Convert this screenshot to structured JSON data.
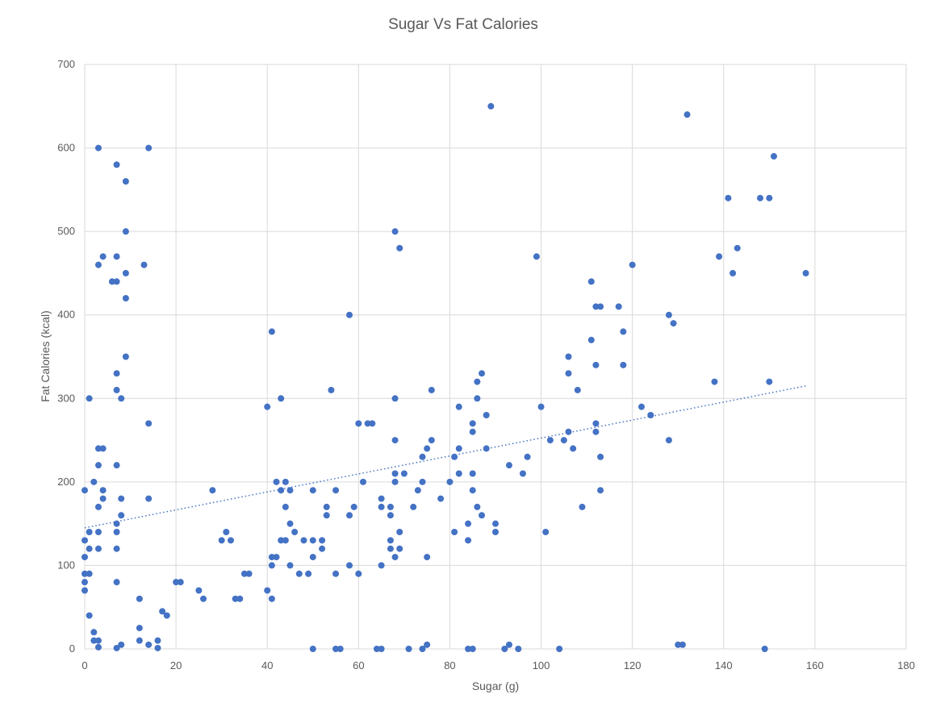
{
  "chart_data": {
    "type": "scatter",
    "title": "Sugar Vs Fat Calories",
    "xlabel": "Sugar (g)",
    "ylabel": "Fat Calories (kcal)",
    "xlim": [
      0,
      180
    ],
    "ylim": [
      0,
      700
    ],
    "xticks": [
      0,
      20,
      40,
      60,
      80,
      100,
      120,
      140,
      160,
      180
    ],
    "yticks": [
      0,
      100,
      200,
      300,
      400,
      500,
      600,
      700
    ],
    "grid": true,
    "legend": "none",
    "marker_color": "#4472c4",
    "trendline": {
      "type": "linear",
      "x": [
        0,
        158
      ],
      "y": [
        145,
        315
      ]
    },
    "points": [
      [
        3,
        600
      ],
      [
        14,
        600
      ],
      [
        7,
        580
      ],
      [
        9,
        560
      ],
      [
        9,
        500
      ],
      [
        4,
        470
      ],
      [
        7,
        470
      ],
      [
        3,
        460
      ],
      [
        13,
        460
      ],
      [
        6,
        440
      ],
      [
        7,
        440
      ],
      [
        9,
        450
      ],
      [
        9,
        420
      ],
      [
        9,
        350
      ],
      [
        7,
        330
      ],
      [
        7,
        310
      ],
      [
        8,
        300
      ],
      [
        1,
        300
      ],
      [
        14,
        270
      ],
      [
        3,
        240
      ],
      [
        4,
        240
      ],
      [
        3,
        220
      ],
      [
        7,
        220
      ],
      [
        2,
        200
      ],
      [
        4,
        190
      ],
      [
        0,
        190
      ],
      [
        4,
        180
      ],
      [
        8,
        180
      ],
      [
        14,
        180
      ],
      [
        3,
        170
      ],
      [
        8,
        160
      ],
      [
        7,
        150
      ],
      [
        1,
        140
      ],
      [
        3,
        140
      ],
      [
        7,
        140
      ],
      [
        0,
        130
      ],
      [
        1,
        120
      ],
      [
        3,
        120
      ],
      [
        7,
        120
      ],
      [
        0,
        110
      ],
      [
        0,
        90
      ],
      [
        1,
        90
      ],
      [
        0,
        80
      ],
      [
        7,
        80
      ],
      [
        0,
        70
      ],
      [
        1,
        40
      ],
      [
        2,
        20
      ],
      [
        2,
        10
      ],
      [
        3,
        10
      ],
      [
        3,
        2
      ],
      [
        7,
        1
      ],
      [
        8,
        5
      ],
      [
        12,
        60
      ],
      [
        12,
        25
      ],
      [
        12,
        10
      ],
      [
        14,
        5
      ],
      [
        16,
        10
      ],
      [
        16,
        1
      ],
      [
        17,
        45
      ],
      [
        18,
        40
      ],
      [
        20,
        80
      ],
      [
        21,
        80
      ],
      [
        25,
        70
      ],
      [
        26,
        60
      ],
      [
        28,
        190
      ],
      [
        30,
        130
      ],
      [
        31,
        140
      ],
      [
        32,
        130
      ],
      [
        33,
        60
      ],
      [
        34,
        60
      ],
      [
        35,
        90
      ],
      [
        36,
        90
      ],
      [
        40,
        290
      ],
      [
        41,
        380
      ],
      [
        43,
        300
      ],
      [
        42,
        200
      ],
      [
        44,
        200
      ],
      [
        43,
        190
      ],
      [
        45,
        190
      ],
      [
        44,
        170
      ],
      [
        45,
        150
      ],
      [
        46,
        140
      ],
      [
        43,
        130
      ],
      [
        44,
        130
      ],
      [
        41,
        110
      ],
      [
        42,
        110
      ],
      [
        41,
        100
      ],
      [
        40,
        70
      ],
      [
        41,
        60
      ],
      [
        45,
        100
      ],
      [
        47,
        90
      ],
      [
        48,
        130
      ],
      [
        49,
        90
      ],
      [
        50,
        190
      ],
      [
        50,
        130
      ],
      [
        50,
        110
      ],
      [
        52,
        130
      ],
      [
        52,
        120
      ],
      [
        53,
        170
      ],
      [
        53,
        160
      ],
      [
        54,
        310
      ],
      [
        55,
        190
      ],
      [
        55,
        90
      ],
      [
        58,
        400
      ],
      [
        58,
        160
      ],
      [
        58,
        100
      ],
      [
        59,
        170
      ],
      [
        60,
        270
      ],
      [
        60,
        90
      ],
      [
        61,
        200
      ],
      [
        62,
        270
      ],
      [
        63,
        270
      ],
      [
        65,
        180
      ],
      [
        65,
        170
      ],
      [
        65,
        100
      ],
      [
        67,
        170
      ],
      [
        67,
        160
      ],
      [
        67,
        130
      ],
      [
        67,
        120
      ],
      [
        68,
        500
      ],
      [
        68,
        300
      ],
      [
        68,
        250
      ],
      [
        68,
        210
      ],
      [
        68,
        200
      ],
      [
        68,
        110
      ],
      [
        69,
        480
      ],
      [
        69,
        140
      ],
      [
        69,
        120
      ],
      [
        70,
        210
      ],
      [
        72,
        170
      ],
      [
        73,
        190
      ],
      [
        74,
        230
      ],
      [
        74,
        200
      ],
      [
        75,
        240
      ],
      [
        75,
        110
      ],
      [
        76,
        310
      ],
      [
        76,
        250
      ],
      [
        78,
        180
      ],
      [
        80,
        200
      ],
      [
        81,
        230
      ],
      [
        81,
        140
      ],
      [
        82,
        290
      ],
      [
        82,
        240
      ],
      [
        82,
        210
      ],
      [
        84,
        150
      ],
      [
        84,
        130
      ],
      [
        85,
        270
      ],
      [
        85,
        260
      ],
      [
        85,
        210
      ],
      [
        85,
        190
      ],
      [
        86,
        320
      ],
      [
        86,
        300
      ],
      [
        86,
        170
      ],
      [
        87,
        330
      ],
      [
        87,
        160
      ],
      [
        88,
        280
      ],
      [
        88,
        240
      ],
      [
        89,
        650
      ],
      [
        90,
        150
      ],
      [
        90,
        140
      ],
      [
        93,
        220
      ],
      [
        96,
        210
      ],
      [
        97,
        230
      ],
      [
        99,
        470
      ],
      [
        100,
        290
      ],
      [
        101,
        140
      ],
      [
        102,
        250
      ],
      [
        105,
        250
      ],
      [
        106,
        350
      ],
      [
        106,
        330
      ],
      [
        106,
        260
      ],
      [
        107,
        240
      ],
      [
        108,
        310
      ],
      [
        109,
        170
      ],
      [
        111,
        440
      ],
      [
        111,
        370
      ],
      [
        112,
        410
      ],
      [
        112,
        340
      ],
      [
        112,
        270
      ],
      [
        112,
        260
      ],
      [
        113,
        410
      ],
      [
        113,
        230
      ],
      [
        113,
        190
      ],
      [
        117,
        410
      ],
      [
        118,
        380
      ],
      [
        118,
        340
      ],
      [
        120,
        460
      ],
      [
        122,
        290
      ],
      [
        124,
        280
      ],
      [
        128,
        400
      ],
      [
        128,
        250
      ],
      [
        129,
        390
      ],
      [
        132,
        640
      ],
      [
        138,
        320
      ],
      [
        139,
        470
      ],
      [
        141,
        540
      ],
      [
        142,
        450
      ],
      [
        143,
        480
      ],
      [
        148,
        540
      ],
      [
        150,
        540
      ],
      [
        150,
        320
      ],
      [
        151,
        590
      ],
      [
        158,
        450
      ],
      [
        50,
        0
      ],
      [
        55,
        0
      ],
      [
        56,
        0
      ],
      [
        64,
        0
      ],
      [
        65,
        0
      ],
      [
        71,
        0
      ],
      [
        74,
        0
      ],
      [
        75,
        5
      ],
      [
        84,
        0
      ],
      [
        85,
        0
      ],
      [
        92,
        0
      ],
      [
        93,
        5
      ],
      [
        95,
        0
      ],
      [
        104,
        0
      ],
      [
        130,
        5
      ],
      [
        131,
        5
      ],
      [
        149,
        0
      ]
    ]
  }
}
